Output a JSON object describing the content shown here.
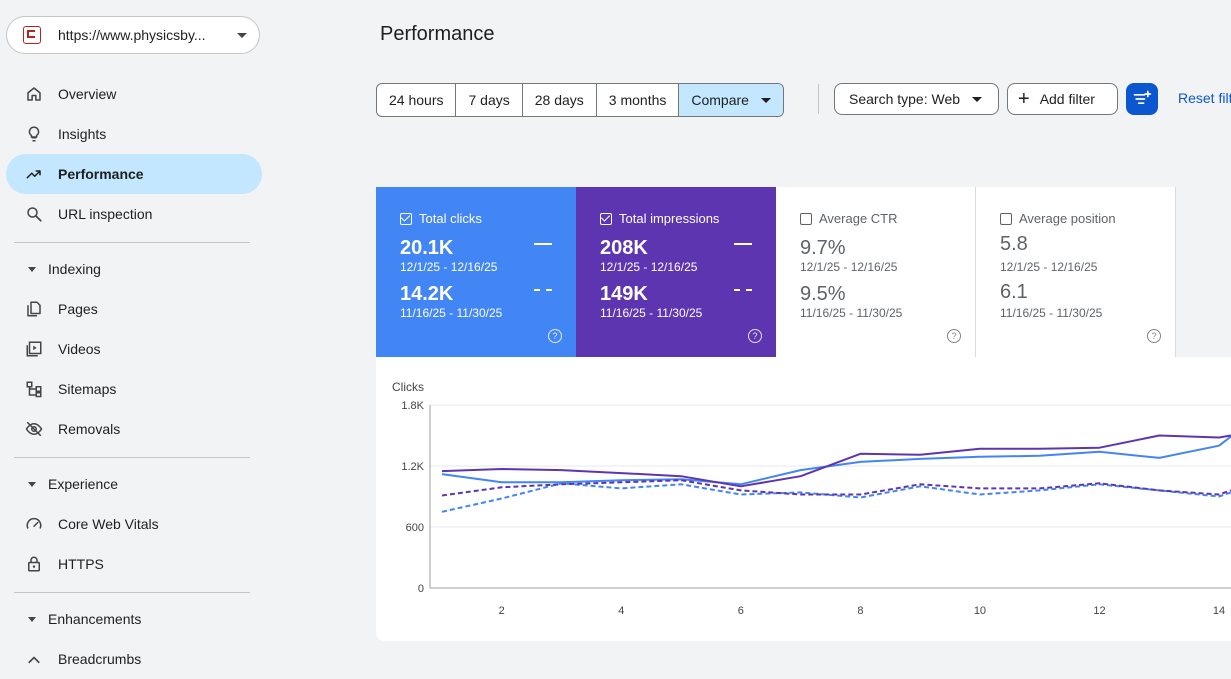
{
  "property": {
    "url": "https://www.physicsby..."
  },
  "sidebar": {
    "items": [
      {
        "label": "Overview"
      },
      {
        "label": "Insights"
      },
      {
        "label": "Performance"
      },
      {
        "label": "URL inspection"
      }
    ],
    "sections": [
      {
        "label": "Indexing",
        "items": [
          {
            "label": "Pages"
          },
          {
            "label": "Videos"
          },
          {
            "label": "Sitemaps"
          },
          {
            "label": "Removals"
          }
        ]
      },
      {
        "label": "Experience",
        "items": [
          {
            "label": "Core Web Vitals"
          },
          {
            "label": "HTTPS"
          }
        ]
      },
      {
        "label": "Enhancements",
        "items": [
          {
            "label": "Breadcrumbs"
          }
        ]
      }
    ]
  },
  "header": {
    "title": "Performance"
  },
  "toolbar": {
    "ranges": [
      "24 hours",
      "7 days",
      "28 days",
      "3 months"
    ],
    "compare_label": "Compare",
    "search_type_label": "Search type: Web",
    "add_filter_label": "Add filter",
    "reset_label": "Reset filters"
  },
  "metrics": [
    {
      "label": "Total clicks",
      "checked": true,
      "current": "20.1K",
      "current_period": "12/1/25 - 12/16/25",
      "previous": "14.2K",
      "previous_period": "11/16/25 - 11/30/25",
      "color": "#4285f4"
    },
    {
      "label": "Total impressions",
      "checked": true,
      "current": "208K",
      "current_period": "12/1/25 - 12/16/25",
      "previous": "149K",
      "previous_period": "11/16/25 - 11/30/25",
      "color": "#5e35b1"
    },
    {
      "label": "Average CTR",
      "checked": false,
      "current": "9.7%",
      "current_period": "12/1/25 - 12/16/25",
      "previous": "9.5%",
      "previous_period": "11/16/25 - 11/30/25"
    },
    {
      "label": "Average position",
      "checked": false,
      "current": "5.8",
      "current_period": "12/1/25 - 12/16/25",
      "previous": "6.1",
      "previous_period": "11/16/25 - 11/30/25"
    }
  ],
  "chart_data": {
    "type": "line",
    "ylabel": "Clicks",
    "yticks": [
      "0",
      "600",
      "1.2K",
      "1.8K"
    ],
    "ylim": [
      0,
      1800
    ],
    "xticks": [
      2,
      4,
      6,
      8,
      10,
      12,
      14
    ],
    "xlim": [
      0.8,
      14.2
    ],
    "grid": true,
    "series": [
      {
        "color": "#4285f4",
        "style": "solid",
        "x": [
          1,
          2,
          3,
          4,
          5,
          6,
          7,
          8,
          9,
          10,
          11,
          12,
          13,
          14,
          14.2
        ],
        "y": [
          1120,
          1040,
          1040,
          1060,
          1070,
          1020,
          1160,
          1240,
          1270,
          1290,
          1300,
          1340,
          1280,
          1400,
          1490
        ]
      },
      {
        "color": "#5e35b1",
        "style": "solid",
        "x": [
          1,
          2,
          3,
          4,
          5,
          6,
          7,
          8,
          9,
          10,
          11,
          12,
          13,
          14,
          14.2
        ],
        "y": [
          1150,
          1170,
          1160,
          1130,
          1100,
          1000,
          1100,
          1320,
          1310,
          1370,
          1370,
          1380,
          1500,
          1480,
          1500
        ]
      },
      {
        "color": "#4285f4",
        "style": "dashed",
        "x": [
          1,
          2,
          3,
          4,
          5,
          6,
          7,
          8,
          9,
          10,
          11,
          12,
          13,
          14,
          14.2
        ],
        "y": [
          750,
          880,
          1030,
          980,
          1020,
          920,
          940,
          890,
          1000,
          920,
          960,
          1020,
          960,
          900,
          940
        ]
      },
      {
        "color": "#5e35b1",
        "style": "dashed",
        "x": [
          1,
          2,
          3,
          4,
          5,
          6,
          7,
          8,
          9,
          10,
          11,
          12,
          13,
          14,
          14.2
        ],
        "y": [
          910,
          990,
          1020,
          1040,
          1060,
          960,
          920,
          920,
          1020,
          980,
          980,
          1030,
          960,
          920,
          960
        ]
      }
    ]
  }
}
